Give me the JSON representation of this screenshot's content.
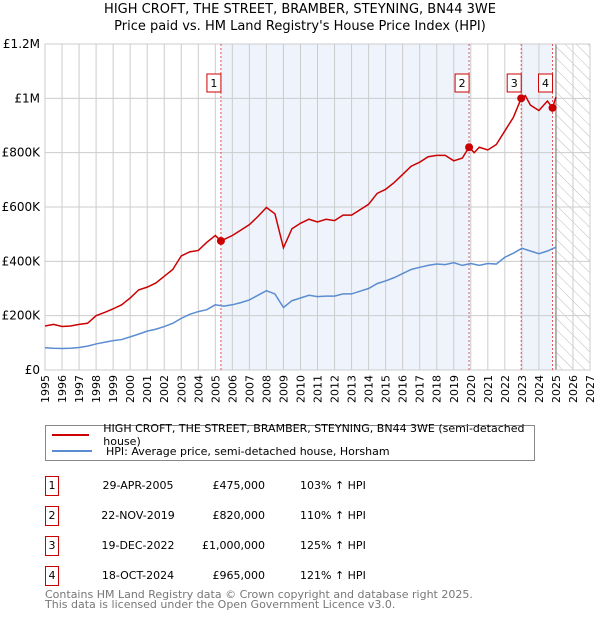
{
  "chart_data": {
    "type": "line",
    "title": "HIGH CROFT, THE STREET, BRAMBER, STEYNING, BN44 3WE",
    "subtitle": "Price paid vs. HM Land Registry's House Price Index (HPI)",
    "xlim": [
      1995,
      2027
    ],
    "ylim": [
      0,
      1200000
    ],
    "y_ticks": [
      {
        "v": 0,
        "label": "£0"
      },
      {
        "v": 200000,
        "label": "£200K"
      },
      {
        "v": 400000,
        "label": "£400K"
      },
      {
        "v": 600000,
        "label": "£600K"
      },
      {
        "v": 800000,
        "label": "£800K"
      },
      {
        "v": 1000000,
        "label": "£1M"
      },
      {
        "v": 1200000,
        "label": "£1.2M"
      }
    ],
    "x_ticks": [
      "1995",
      "1996",
      "1997",
      "1998",
      "1999",
      "2000",
      "2001",
      "2002",
      "2003",
      "2004",
      "2005",
      "2006",
      "2007",
      "2008",
      "2009",
      "2010",
      "2011",
      "2012",
      "2013",
      "2014",
      "2015",
      "2016",
      "2017",
      "2018",
      "2019",
      "2020",
      "2021",
      "2022",
      "2023",
      "2024",
      "2025",
      "2026",
      "2027"
    ],
    "grid": true,
    "forecast_from": 2025,
    "series": [
      {
        "name": "HIGH CROFT, THE STREET, BRAMBER, STEYNING, BN44 3WE (semi-detached house)",
        "color": "#cc0000",
        "x": [
          1995,
          1995.5,
          1996,
          1996.5,
          1997,
          1997.5,
          1998,
          1998.5,
          1999,
          1999.5,
          2000,
          2000.5,
          2001,
          2001.5,
          2002,
          2002.5,
          2003,
          2003.5,
          2004,
          2004.5,
          2005,
          2005.33,
          2006,
          2006.5,
          2007,
          2007.5,
          2008,
          2008.5,
          2009,
          2009.5,
          2010,
          2010.5,
          2011,
          2011.5,
          2012,
          2012.5,
          2013,
          2013.5,
          2014,
          2014.5,
          2015,
          2015.5,
          2016,
          2016.5,
          2017,
          2017.5,
          2018,
          2018.5,
          2019,
          2019.5,
          2019.9,
          2020.2,
          2020.5,
          2021,
          2021.5,
          2022,
          2022.5,
          2022.96,
          2023.2,
          2023.5,
          2024,
          2024.5,
          2024.8,
          2025
        ],
        "y": [
          162000,
          168000,
          160000,
          162000,
          168000,
          172000,
          200000,
          212000,
          225000,
          240000,
          265000,
          295000,
          305000,
          320000,
          345000,
          370000,
          420000,
          435000,
          440000,
          470000,
          495000,
          475000,
          495000,
          515000,
          535000,
          565000,
          598000,
          575000,
          450000,
          520000,
          540000,
          555000,
          545000,
          555000,
          550000,
          570000,
          570000,
          590000,
          610000,
          650000,
          665000,
          690000,
          720000,
          750000,
          765000,
          785000,
          790000,
          790000,
          770000,
          780000,
          820000,
          800000,
          820000,
          810000,
          830000,
          880000,
          930000,
          1000000,
          1010000,
          975000,
          955000,
          990000,
          965000,
          1005000
        ]
      },
      {
        "name": "HPI: Average price, semi-detached house, Horsham",
        "color": "#5b8dd0",
        "x": [
          1995,
          1995.5,
          1996,
          1996.5,
          1997,
          1997.5,
          1998,
          1998.5,
          1999,
          1999.5,
          2000,
          2000.5,
          2001,
          2001.5,
          2002,
          2002.5,
          2003,
          2003.5,
          2004,
          2004.5,
          2005,
          2005.5,
          2006,
          2006.5,
          2007,
          2007.5,
          2008,
          2008.5,
          2009,
          2009.5,
          2010,
          2010.5,
          2011,
          2011.5,
          2012,
          2012.5,
          2013,
          2013.5,
          2014,
          2014.5,
          2015,
          2015.5,
          2016,
          2016.5,
          2017,
          2017.5,
          2018,
          2018.5,
          2019,
          2019.5,
          2020,
          2020.5,
          2021,
          2021.5,
          2022,
          2022.5,
          2023,
          2023.5,
          2024,
          2024.5,
          2025
        ],
        "y": [
          82000,
          80000,
          79000,
          80000,
          83000,
          88000,
          96000,
          102000,
          108000,
          112000,
          122000,
          132000,
          143000,
          150000,
          160000,
          172000,
          190000,
          205000,
          215000,
          222000,
          240000,
          235000,
          240000,
          248000,
          258000,
          275000,
          292000,
          280000,
          230000,
          255000,
          265000,
          275000,
          270000,
          272000,
          272000,
          280000,
          280000,
          290000,
          300000,
          318000,
          328000,
          340000,
          355000,
          370000,
          378000,
          385000,
          390000,
          388000,
          395000,
          385000,
          392000,
          385000,
          392000,
          390000,
          415000,
          430000,
          448000,
          438000,
          428000,
          438000,
          452000
        ]
      }
    ],
    "sales": [
      {
        "n": "1",
        "x": 2005.33,
        "date": "29-APR-2005",
        "price": "£475,000",
        "value": 475000,
        "hpi": "103% ↑ HPI"
      },
      {
        "n": "2",
        "x": 2019.9,
        "date": "22-NOV-2019",
        "price": "£820,000",
        "value": 820000,
        "hpi": "110% ↑ HPI"
      },
      {
        "n": "3",
        "x": 2022.96,
        "date": "19-DEC-2022",
        "price": "£1,000,000",
        "value": 1000000,
        "hpi": "125% ↑ HPI"
      },
      {
        "n": "4",
        "x": 2024.8,
        "date": "18-OCT-2024",
        "price": "£965,000",
        "value": 965000,
        "hpi": "121% ↑ HPI"
      }
    ]
  },
  "footer": {
    "line1": "Contains HM Land Registry data © Crown copyright and database right 2025.",
    "line2": "This data is licensed under the Open Government Licence v3.0."
  }
}
